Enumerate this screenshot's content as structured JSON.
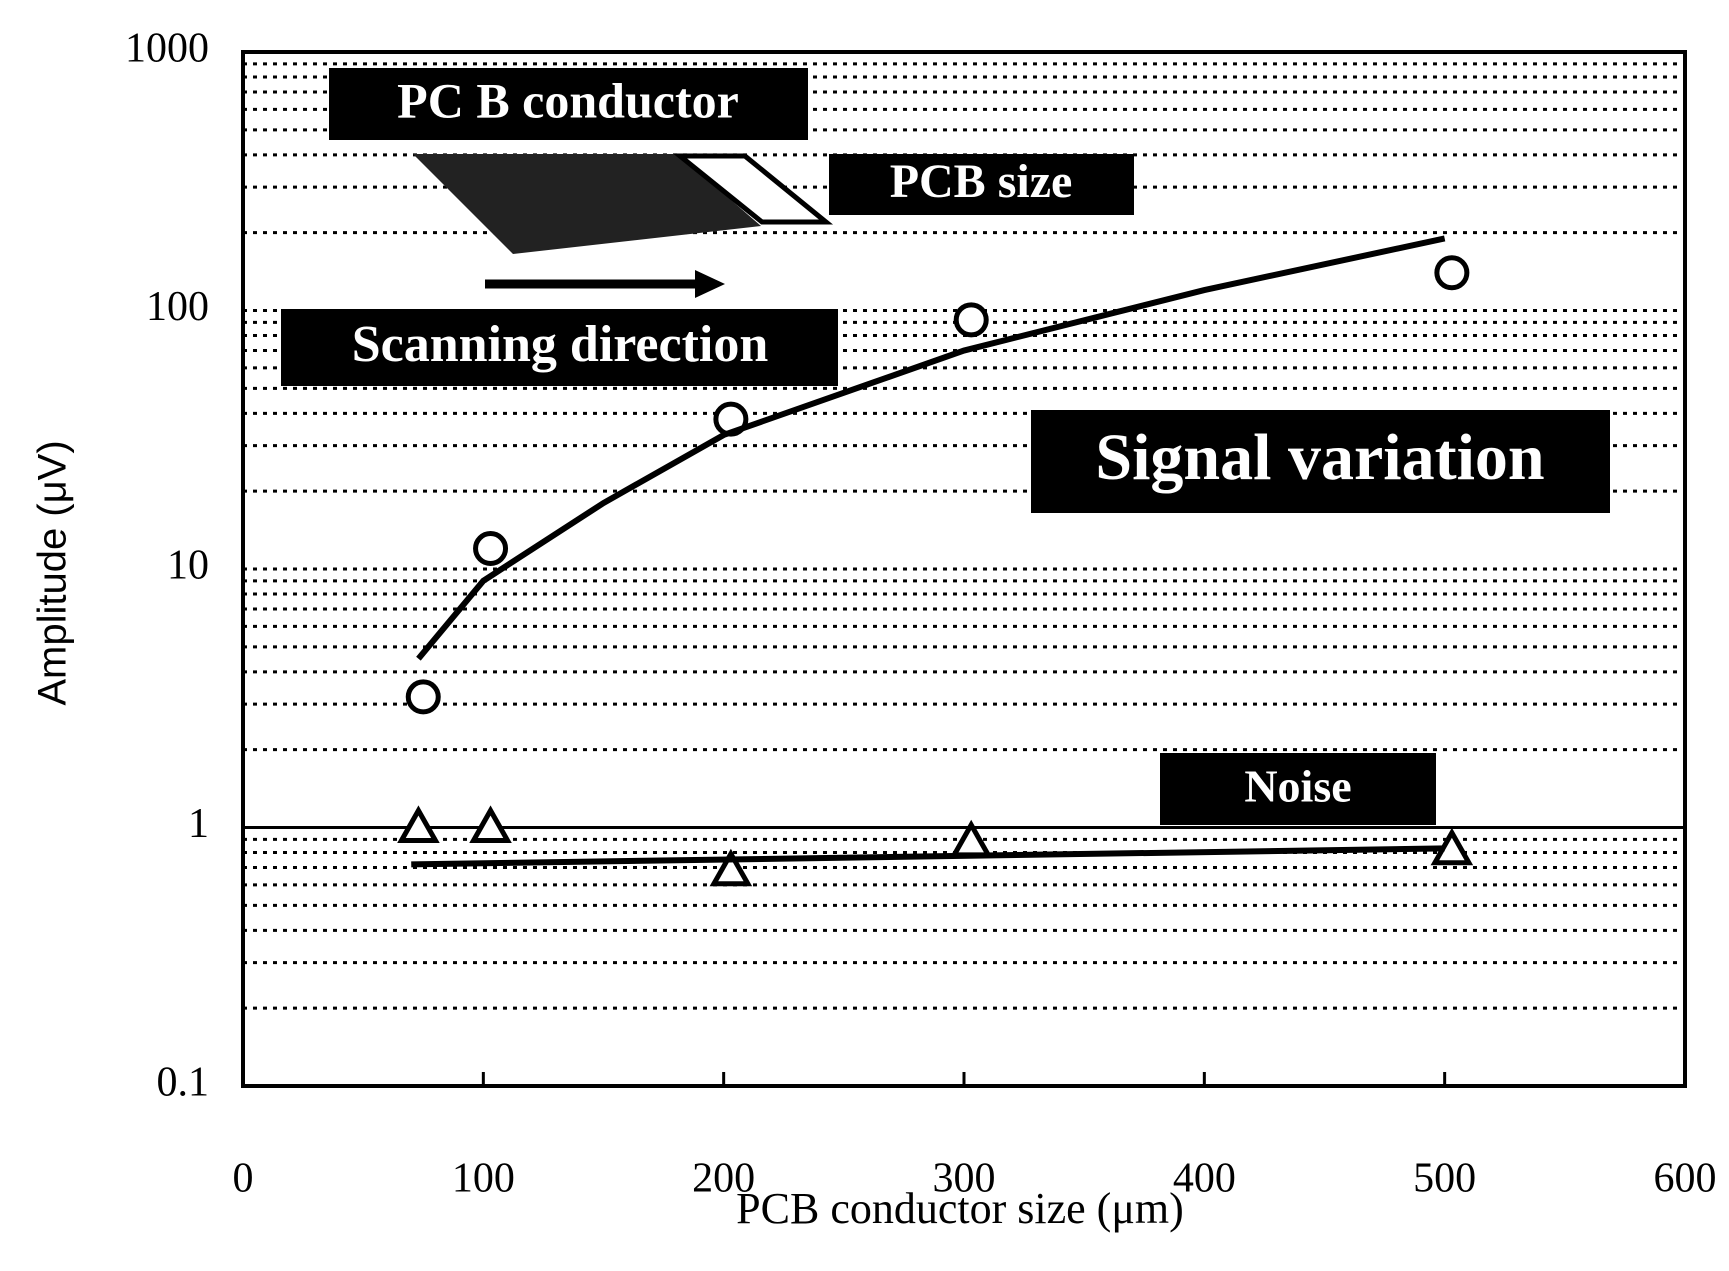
{
  "chart_data": {
    "type": "scatter",
    "xlabel": "PCB conductor size (μm)",
    "ylabel": "Amplitude (μV)",
    "xlim": [
      0,
      600
    ],
    "xticks": [
      0,
      100,
      200,
      300,
      400,
      500,
      600
    ],
    "ylim": [
      0.1,
      1000
    ],
    "yticks": [
      0.1,
      1,
      10,
      100,
      1000
    ],
    "yscale": "log",
    "grid": "minor-dotted",
    "hline": 1,
    "series": [
      {
        "marker": "circle",
        "color": "#000000",
        "x": [
          75,
          103,
          203,
          303,
          503
        ],
        "values": [
          3.2,
          12,
          38,
          92,
          140
        ]
      },
      {
        "marker": "triangle",
        "color": "#000000",
        "x": [
          73,
          103,
          203,
          303,
          503
        ],
        "values": [
          1.0,
          1.0,
          0.68,
          0.88,
          0.82
        ]
      },
      {
        "marker": "line",
        "color": "#000000",
        "x": [
          73,
          100,
          150,
          200,
          300,
          400,
          500
        ],
        "values": [
          4.5,
          9,
          18,
          33,
          70,
          120,
          190
        ]
      },
      {
        "marker": "line",
        "color": "#000000",
        "x": [
          70,
          500
        ],
        "values": [
          0.72,
          0.83
        ]
      }
    ],
    "annotations": [
      "PC B conductor",
      "PCB size",
      "Scanning direction",
      "Signal variation",
      "Noise"
    ]
  }
}
